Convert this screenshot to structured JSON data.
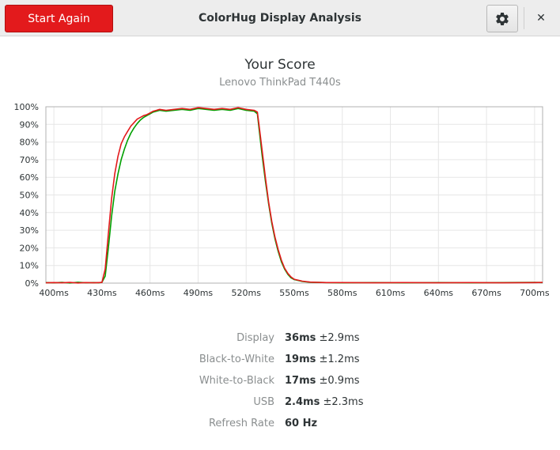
{
  "window": {
    "title": "ColorHug Display Analysis"
  },
  "header": {
    "start_label": "Start Again",
    "settings_icon": "gear-icon",
    "close_icon": "close-icon",
    "close_glyph": "✕",
    "accent_color": "#e31a1c"
  },
  "score": {
    "title": "Your Score",
    "subtitle": "Lenovo ThinkPad T440s"
  },
  "chart_data": {
    "type": "line",
    "xlabel": "",
    "ylabel": "",
    "xlim": [
      395,
      705
    ],
    "ylim": [
      0,
      100
    ],
    "x_ticks": [
      400,
      430,
      460,
      490,
      520,
      550,
      580,
      610,
      640,
      670,
      700
    ],
    "x_tick_labels": [
      "400ms",
      "430ms",
      "460ms",
      "490ms",
      "520ms",
      "550ms",
      "580ms",
      "610ms",
      "640ms",
      "670ms",
      "700ms"
    ],
    "y_ticks": [
      0,
      10,
      20,
      30,
      40,
      50,
      60,
      70,
      80,
      90,
      100
    ],
    "y_tick_labels": [
      "0%",
      "10%",
      "20%",
      "30%",
      "40%",
      "50%",
      "60%",
      "70%",
      "80%",
      "90%",
      "100%"
    ],
    "grid": true,
    "series": [
      {
        "color": "#00a000",
        "x": [
          395,
          400,
          405,
          410,
          415,
          420,
          425,
          428,
          430,
          432,
          434,
          436,
          438,
          440,
          442,
          444,
          446,
          448,
          450,
          452,
          454,
          456,
          458,
          460,
          462,
          464,
          466,
          470,
          475,
          480,
          485,
          490,
          495,
          500,
          505,
          510,
          515,
          520,
          525,
          527,
          528,
          530,
          532,
          534,
          536,
          538,
          540,
          542,
          544,
          546,
          548,
          550,
          555,
          560,
          565,
          570,
          580,
          600,
          620,
          640,
          660,
          680,
          700,
          705
        ],
        "y": [
          0.3,
          0.2,
          0.4,
          0.1,
          0.5,
          0.2,
          0.3,
          0.2,
          0.5,
          4,
          20,
          38,
          52,
          62,
          70,
          76,
          81,
          85,
          88,
          90.5,
          92.5,
          94,
          95,
          96,
          97,
          97.5,
          98,
          97.5,
          98,
          98.5,
          98,
          99,
          98.5,
          98,
          98.5,
          98,
          99,
          98,
          97.5,
          96,
          88,
          72,
          58,
          45,
          34,
          25,
          18,
          12,
          8,
          5,
          3,
          2,
          1,
          0.5,
          0.4,
          0.3,
          0.2,
          0.3,
          0.2,
          0.3,
          0.2,
          0.3,
          0.4,
          0.3
        ]
      },
      {
        "color": "#e31a1c",
        "x": [
          395,
          400,
          405,
          410,
          415,
          420,
          425,
          428,
          430,
          432,
          434,
          436,
          438,
          440,
          442,
          444,
          446,
          448,
          450,
          452,
          454,
          456,
          458,
          460,
          462,
          464,
          466,
          470,
          475,
          480,
          485,
          490,
          495,
          500,
          505,
          510,
          515,
          520,
          525,
          527,
          528,
          530,
          532,
          534,
          536,
          538,
          540,
          542,
          544,
          546,
          548,
          550,
          555,
          560,
          565,
          570,
          580,
          600,
          620,
          640,
          660,
          680,
          700,
          705
        ],
        "y": [
          0.2,
          0.3,
          0.2,
          0.4,
          0.1,
          0.3,
          0.2,
          0.3,
          0.4,
          8,
          28,
          48,
          62,
          72,
          79,
          83,
          86,
          89,
          91,
          93,
          94,
          95,
          95.5,
          96.5,
          97.5,
          98,
          98.5,
          98,
          98.5,
          99,
          98.5,
          99.5,
          99,
          98.5,
          99,
          98.5,
          99.5,
          98.5,
          98,
          97,
          90,
          75,
          60,
          46,
          35,
          26,
          19,
          13,
          8.5,
          5.5,
          3.5,
          2.2,
          1.1,
          0.6,
          0.4,
          0.3,
          0.3,
          0.2,
          0.3,
          0.2,
          0.3,
          0.2,
          0.3,
          0.4
        ]
      }
    ]
  },
  "stats": [
    {
      "label": "Display",
      "value": "36ms",
      "extra": " ±2.9ms"
    },
    {
      "label": "Black-to-White",
      "value": "19ms",
      "extra": " ±1.2ms"
    },
    {
      "label": "White-to-Black",
      "value": "17ms",
      "extra": " ±0.9ms"
    },
    {
      "label": "USB",
      "value": "2.4ms",
      "extra": " ±2.3ms"
    },
    {
      "label": "Refresh Rate",
      "value": "60 Hz",
      "extra": ""
    }
  ]
}
